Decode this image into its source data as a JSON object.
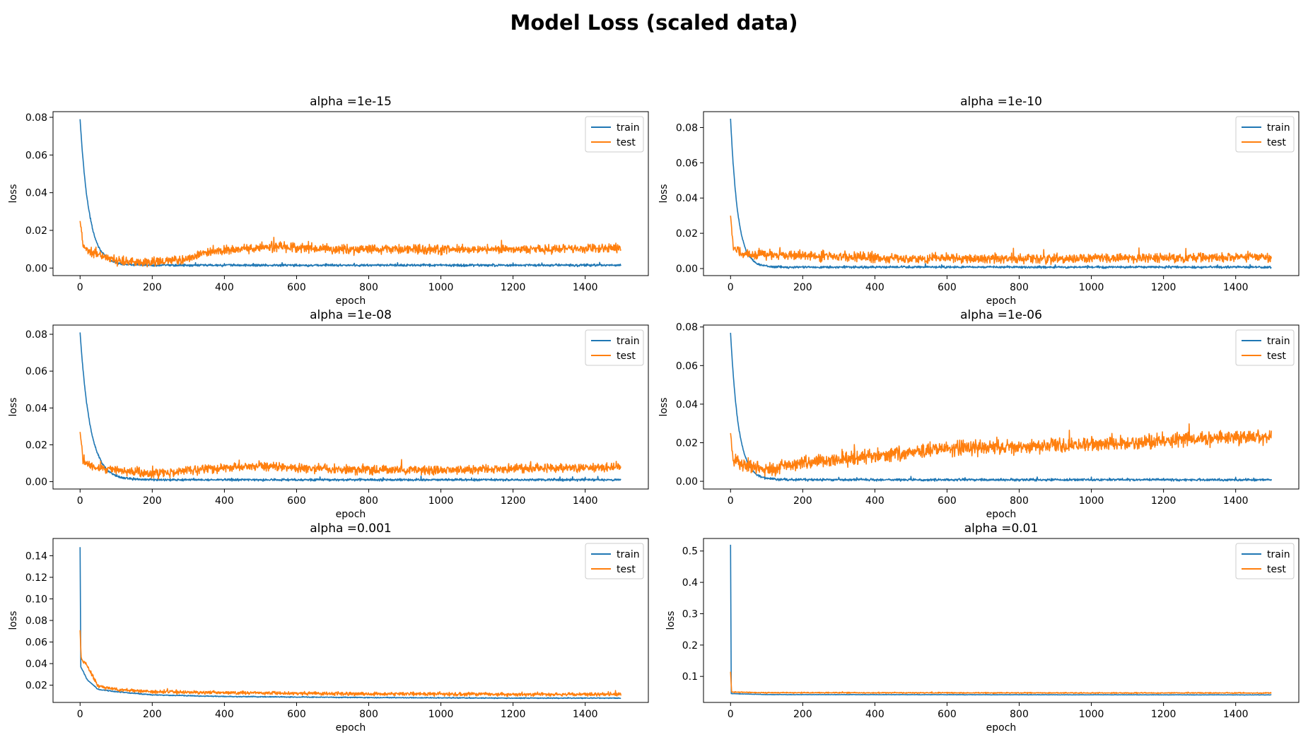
{
  "figure": {
    "title": "Model Loss (scaled data)"
  },
  "colors": {
    "train": "#1f77b4",
    "test": "#ff7f0e"
  },
  "chart_data": [
    {
      "type": "line",
      "title": "alpha =1e-15",
      "xlabel": "epoch",
      "ylabel": "loss",
      "xlim": [
        -75,
        1575
      ],
      "ylim": [
        -0.004,
        0.083
      ],
      "xticks": [
        0,
        200,
        400,
        600,
        800,
        1000,
        1200,
        1400
      ],
      "yticks": [
        0.0,
        0.02,
        0.04,
        0.06,
        0.08
      ],
      "ytick_decimals": 2,
      "legend": "top-right",
      "series": [
        {
          "name": "train",
          "start": 0.079,
          "plateau": 0.0015,
          "decay": 25,
          "noise": 0.0003,
          "spike_every": 40,
          "spike": 0.0015
        },
        {
          "name": "test",
          "start": 0.025,
          "points": [
            [
              0,
              0.025
            ],
            [
              8,
              0.012
            ],
            [
              30,
              0.008
            ],
            [
              100,
              0.004
            ],
            [
              180,
              0.003
            ],
            [
              280,
              0.004
            ],
            [
              350,
              0.0085
            ],
            [
              450,
              0.0105
            ],
            [
              540,
              0.0115
            ],
            [
              700,
              0.01
            ],
            [
              900,
              0.01
            ],
            [
              1100,
              0.01
            ],
            [
              1300,
              0.01
            ],
            [
              1500,
              0.011
            ]
          ],
          "noise": 0.0012
        }
      ]
    },
    {
      "type": "line",
      "title": "alpha =1e-10",
      "xlabel": "epoch",
      "ylabel": "loss",
      "xlim": [
        -75,
        1575
      ],
      "ylim": [
        -0.004,
        0.089
      ],
      "xticks": [
        0,
        200,
        400,
        600,
        800,
        1000,
        1200,
        1400
      ],
      "yticks": [
        0.0,
        0.02,
        0.04,
        0.06,
        0.08
      ],
      "ytick_decimals": 2,
      "legend": "top-right",
      "series": [
        {
          "name": "train",
          "start": 0.085,
          "plateau": 0.0008,
          "decay": 20,
          "noise": 0.0003,
          "spike_every": 45,
          "spike": 0.0015
        },
        {
          "name": "test",
          "start": 0.03,
          "points": [
            [
              0,
              0.03
            ],
            [
              8,
              0.012
            ],
            [
              30,
              0.008
            ],
            [
              150,
              0.0075
            ],
            [
              300,
              0.007
            ],
            [
              500,
              0.0055
            ],
            [
              800,
              0.0055
            ],
            [
              1100,
              0.006
            ],
            [
              1500,
              0.0065
            ]
          ],
          "noise": 0.0013
        }
      ]
    },
    {
      "type": "line",
      "title": "alpha =1e-08",
      "xlabel": "epoch",
      "ylabel": "loss",
      "xlim": [
        -75,
        1575
      ],
      "ylim": [
        -0.004,
        0.085
      ],
      "xticks": [
        0,
        200,
        400,
        600,
        800,
        1000,
        1200,
        1400
      ],
      "yticks": [
        0.0,
        0.02,
        0.04,
        0.06,
        0.08
      ],
      "ytick_decimals": 2,
      "legend": "top-right",
      "series": [
        {
          "name": "train",
          "start": 0.081,
          "plateau": 0.001,
          "decay": 28,
          "noise": 0.0003,
          "spike_every": 35,
          "spike": 0.0018
        },
        {
          "name": "test",
          "start": 0.027,
          "points": [
            [
              0,
              0.027
            ],
            [
              8,
              0.012
            ],
            [
              30,
              0.008
            ],
            [
              120,
              0.006
            ],
            [
              200,
              0.004
            ],
            [
              300,
              0.006
            ],
            [
              450,
              0.0085
            ],
            [
              600,
              0.0075
            ],
            [
              800,
              0.0065
            ],
            [
              1000,
              0.006
            ],
            [
              1200,
              0.007
            ],
            [
              1500,
              0.008
            ]
          ],
          "noise": 0.0012
        }
      ]
    },
    {
      "type": "line",
      "title": "alpha =1e-06",
      "xlabel": "epoch",
      "ylabel": "loss",
      "xlim": [
        -75,
        1575
      ],
      "ylim": [
        -0.004,
        0.081
      ],
      "xticks": [
        0,
        200,
        400,
        600,
        800,
        1000,
        1200,
        1400
      ],
      "yticks": [
        0.0,
        0.02,
        0.04,
        0.06,
        0.08
      ],
      "ytick_decimals": 2,
      "legend": "top-right",
      "series": [
        {
          "name": "train",
          "start": 0.077,
          "plateau": 0.0008,
          "decay": 22,
          "noise": 0.0003,
          "spike_every": 50,
          "spike": 0.0015
        },
        {
          "name": "test",
          "start": 0.025,
          "points": [
            [
              0,
              0.025
            ],
            [
              8,
              0.012
            ],
            [
              30,
              0.008
            ],
            [
              100,
              0.006
            ],
            [
              200,
              0.01
            ],
            [
              400,
              0.013
            ],
            [
              600,
              0.017
            ],
            [
              800,
              0.018
            ],
            [
              1000,
              0.019
            ],
            [
              1200,
              0.021
            ],
            [
              1400,
              0.023
            ],
            [
              1500,
              0.023
            ]
          ],
          "noise": 0.0018
        }
      ]
    },
    {
      "type": "line",
      "title": "alpha =0.001",
      "xlabel": "epoch",
      "ylabel": "loss",
      "xlim": [
        -75,
        1575
      ],
      "ylim": [
        0.004,
        0.156
      ],
      "xticks": [
        0,
        200,
        400,
        600,
        800,
        1000,
        1200,
        1400
      ],
      "yticks": [
        0.02,
        0.04,
        0.06,
        0.08,
        0.1,
        0.12,
        0.14
      ],
      "ytick_decimals": 2,
      "legend": "top-right",
      "series": [
        {
          "name": "train",
          "start": 0.148,
          "points": [
            [
              0,
              0.148
            ],
            [
              2,
              0.037
            ],
            [
              20,
              0.025
            ],
            [
              50,
              0.016
            ],
            [
              100,
              0.014
            ],
            [
              200,
              0.011
            ],
            [
              400,
              0.0095
            ],
            [
              800,
              0.0085
            ],
            [
              1200,
              0.008
            ],
            [
              1500,
              0.008
            ]
          ],
          "noise": 0.0002
        },
        {
          "name": "test",
          "start": 0.071,
          "points": [
            [
              0,
              0.071
            ],
            [
              3,
              0.045
            ],
            [
              20,
              0.038
            ],
            [
              50,
              0.019
            ],
            [
              100,
              0.016
            ],
            [
              200,
              0.014
            ],
            [
              400,
              0.013
            ],
            [
              800,
              0.012
            ],
            [
              1200,
              0.0115
            ],
            [
              1500,
              0.0115
            ]
          ],
          "noise": 0.0008
        }
      ]
    },
    {
      "type": "line",
      "title": "alpha =0.01",
      "xlabel": "epoch",
      "ylabel": "loss",
      "xlim": [
        -75,
        1575
      ],
      "ylim": [
        0.017,
        0.54
      ],
      "xticks": [
        0,
        200,
        400,
        600,
        800,
        1000,
        1200,
        1400
      ],
      "yticks": [
        0.1,
        0.2,
        0.3,
        0.4,
        0.5
      ],
      "ytick_decimals": 1,
      "legend": "top-right",
      "series": [
        {
          "name": "train",
          "start": 0.52,
          "points": [
            [
              0,
              0.52
            ],
            [
              2,
              0.045
            ],
            [
              100,
              0.042
            ],
            [
              1500,
              0.041
            ]
          ],
          "noise": 0.0003
        },
        {
          "name": "test",
          "start": 0.115,
          "points": [
            [
              0,
              0.115
            ],
            [
              3,
              0.05
            ],
            [
              100,
              0.048
            ],
            [
              1500,
              0.047
            ]
          ],
          "noise": 0.0008
        }
      ]
    }
  ]
}
